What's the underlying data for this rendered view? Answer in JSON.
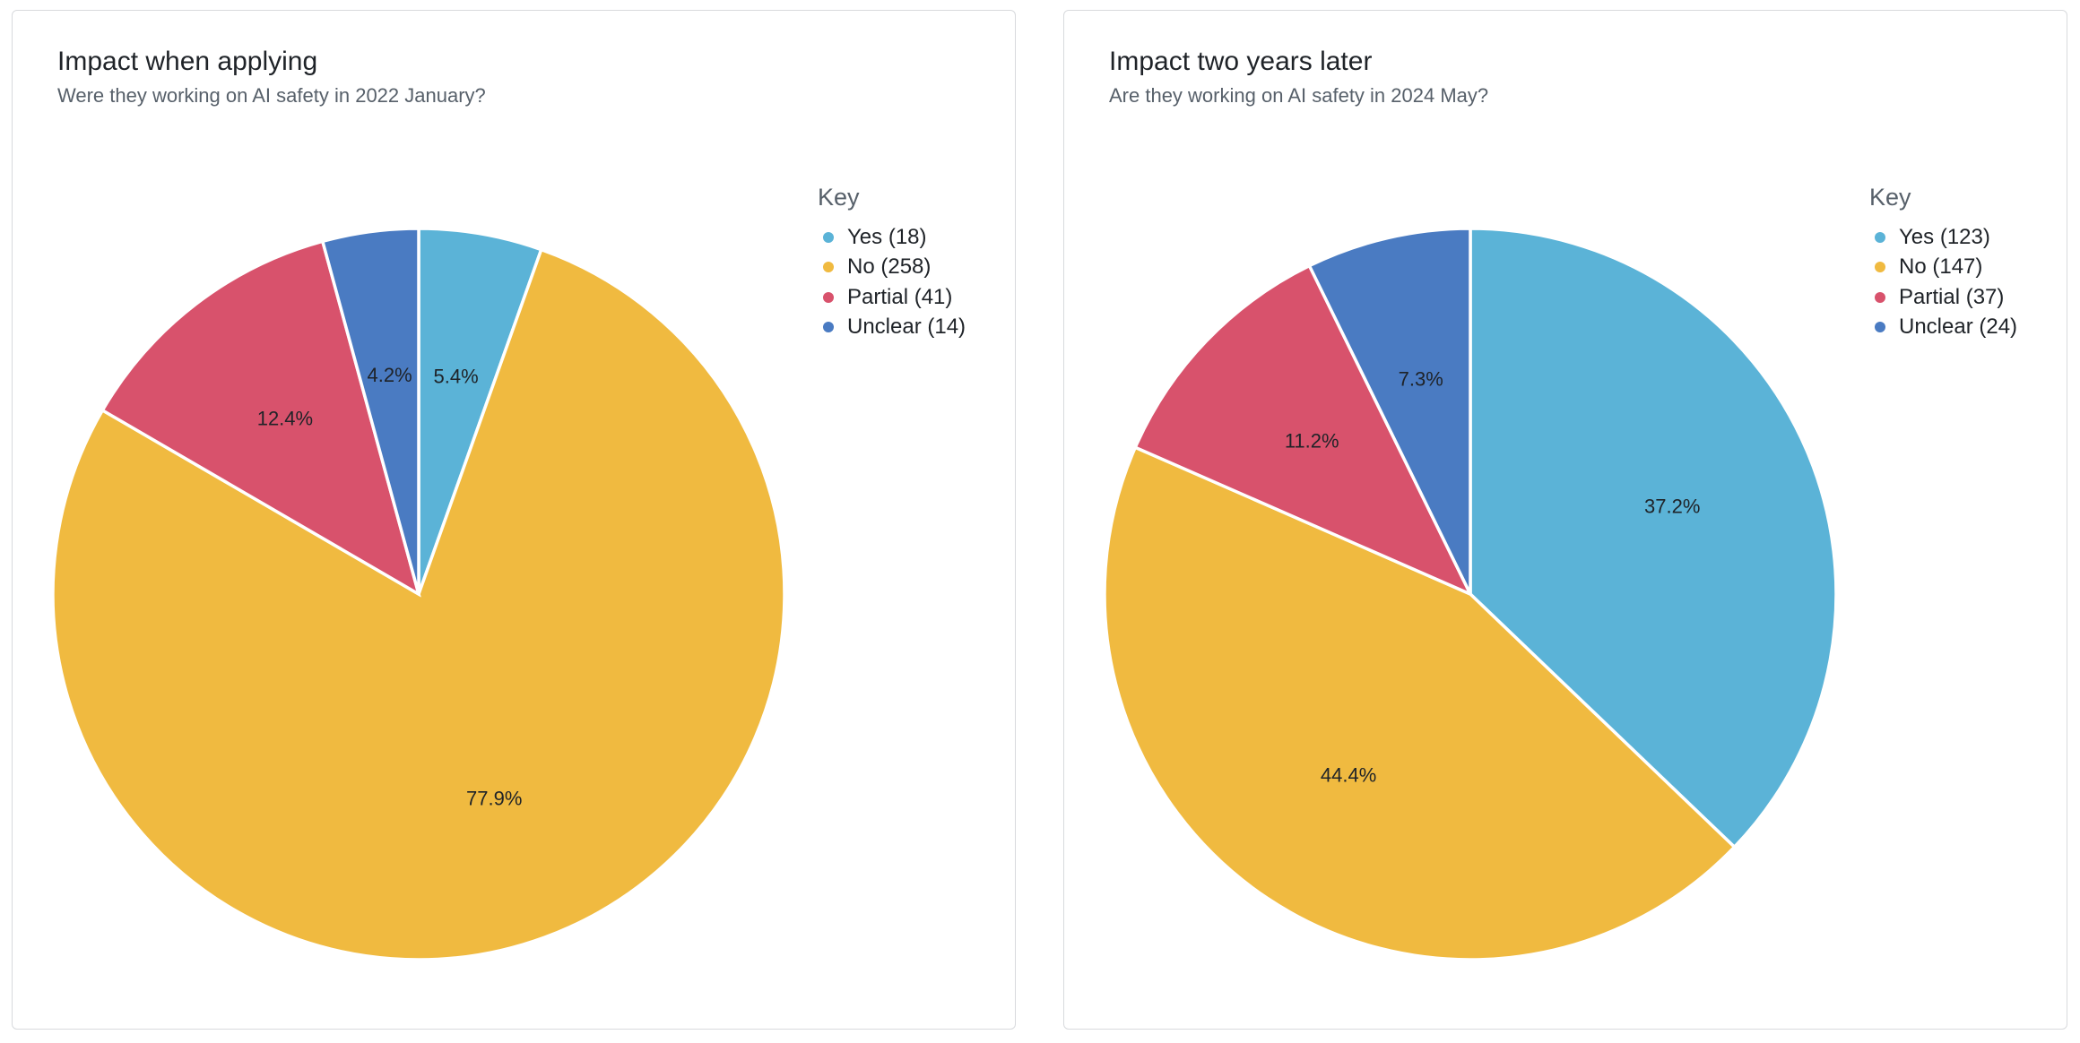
{
  "charts": [
    {
      "title": "Impact when applying",
      "subtitle": "Were they working on AI safety in 2022 January?",
      "legend_title": "Key",
      "legend": [
        "Yes (18)",
        "No (258)",
        "Partial (41)",
        "Unclear (14)"
      ],
      "pct_labels": [
        "5.4%",
        "77.9%",
        "12.4%",
        "4.2%"
      ]
    },
    {
      "title": "Impact two years later",
      "subtitle": "Are they working on AI safety in 2024 May?",
      "legend_title": "Key",
      "legend": [
        "Yes (123)",
        "No (147)",
        "Partial (37)",
        "Unclear (24)"
      ],
      "pct_labels": [
        "37.2%",
        "44.4%",
        "11.2%",
        "7.3%"
      ]
    }
  ],
  "colors": {
    "yes": "#5bb3d7",
    "no": "#f0ba40",
    "partial": "#d8526c",
    "unclear": "#4a7bc2"
  },
  "chart_data": [
    {
      "type": "pie",
      "title": "Impact when applying",
      "subtitle": "Were they working on AI safety in 2022 January?",
      "categories": [
        "Yes",
        "No",
        "Partial",
        "Unclear"
      ],
      "values": [
        18,
        258,
        41,
        14
      ],
      "percentages": [
        5.4,
        77.9,
        12.4,
        4.2
      ],
      "legend_title": "Key",
      "legend_position": "right"
    },
    {
      "type": "pie",
      "title": "Impact two years later",
      "subtitle": "Are they working on AI safety in 2024 May?",
      "categories": [
        "Yes",
        "No",
        "Partial",
        "Unclear"
      ],
      "values": [
        123,
        147,
        37,
        24
      ],
      "percentages": [
        37.2,
        44.4,
        11.2,
        7.3
      ],
      "legend_title": "Key",
      "legend_position": "right"
    }
  ]
}
